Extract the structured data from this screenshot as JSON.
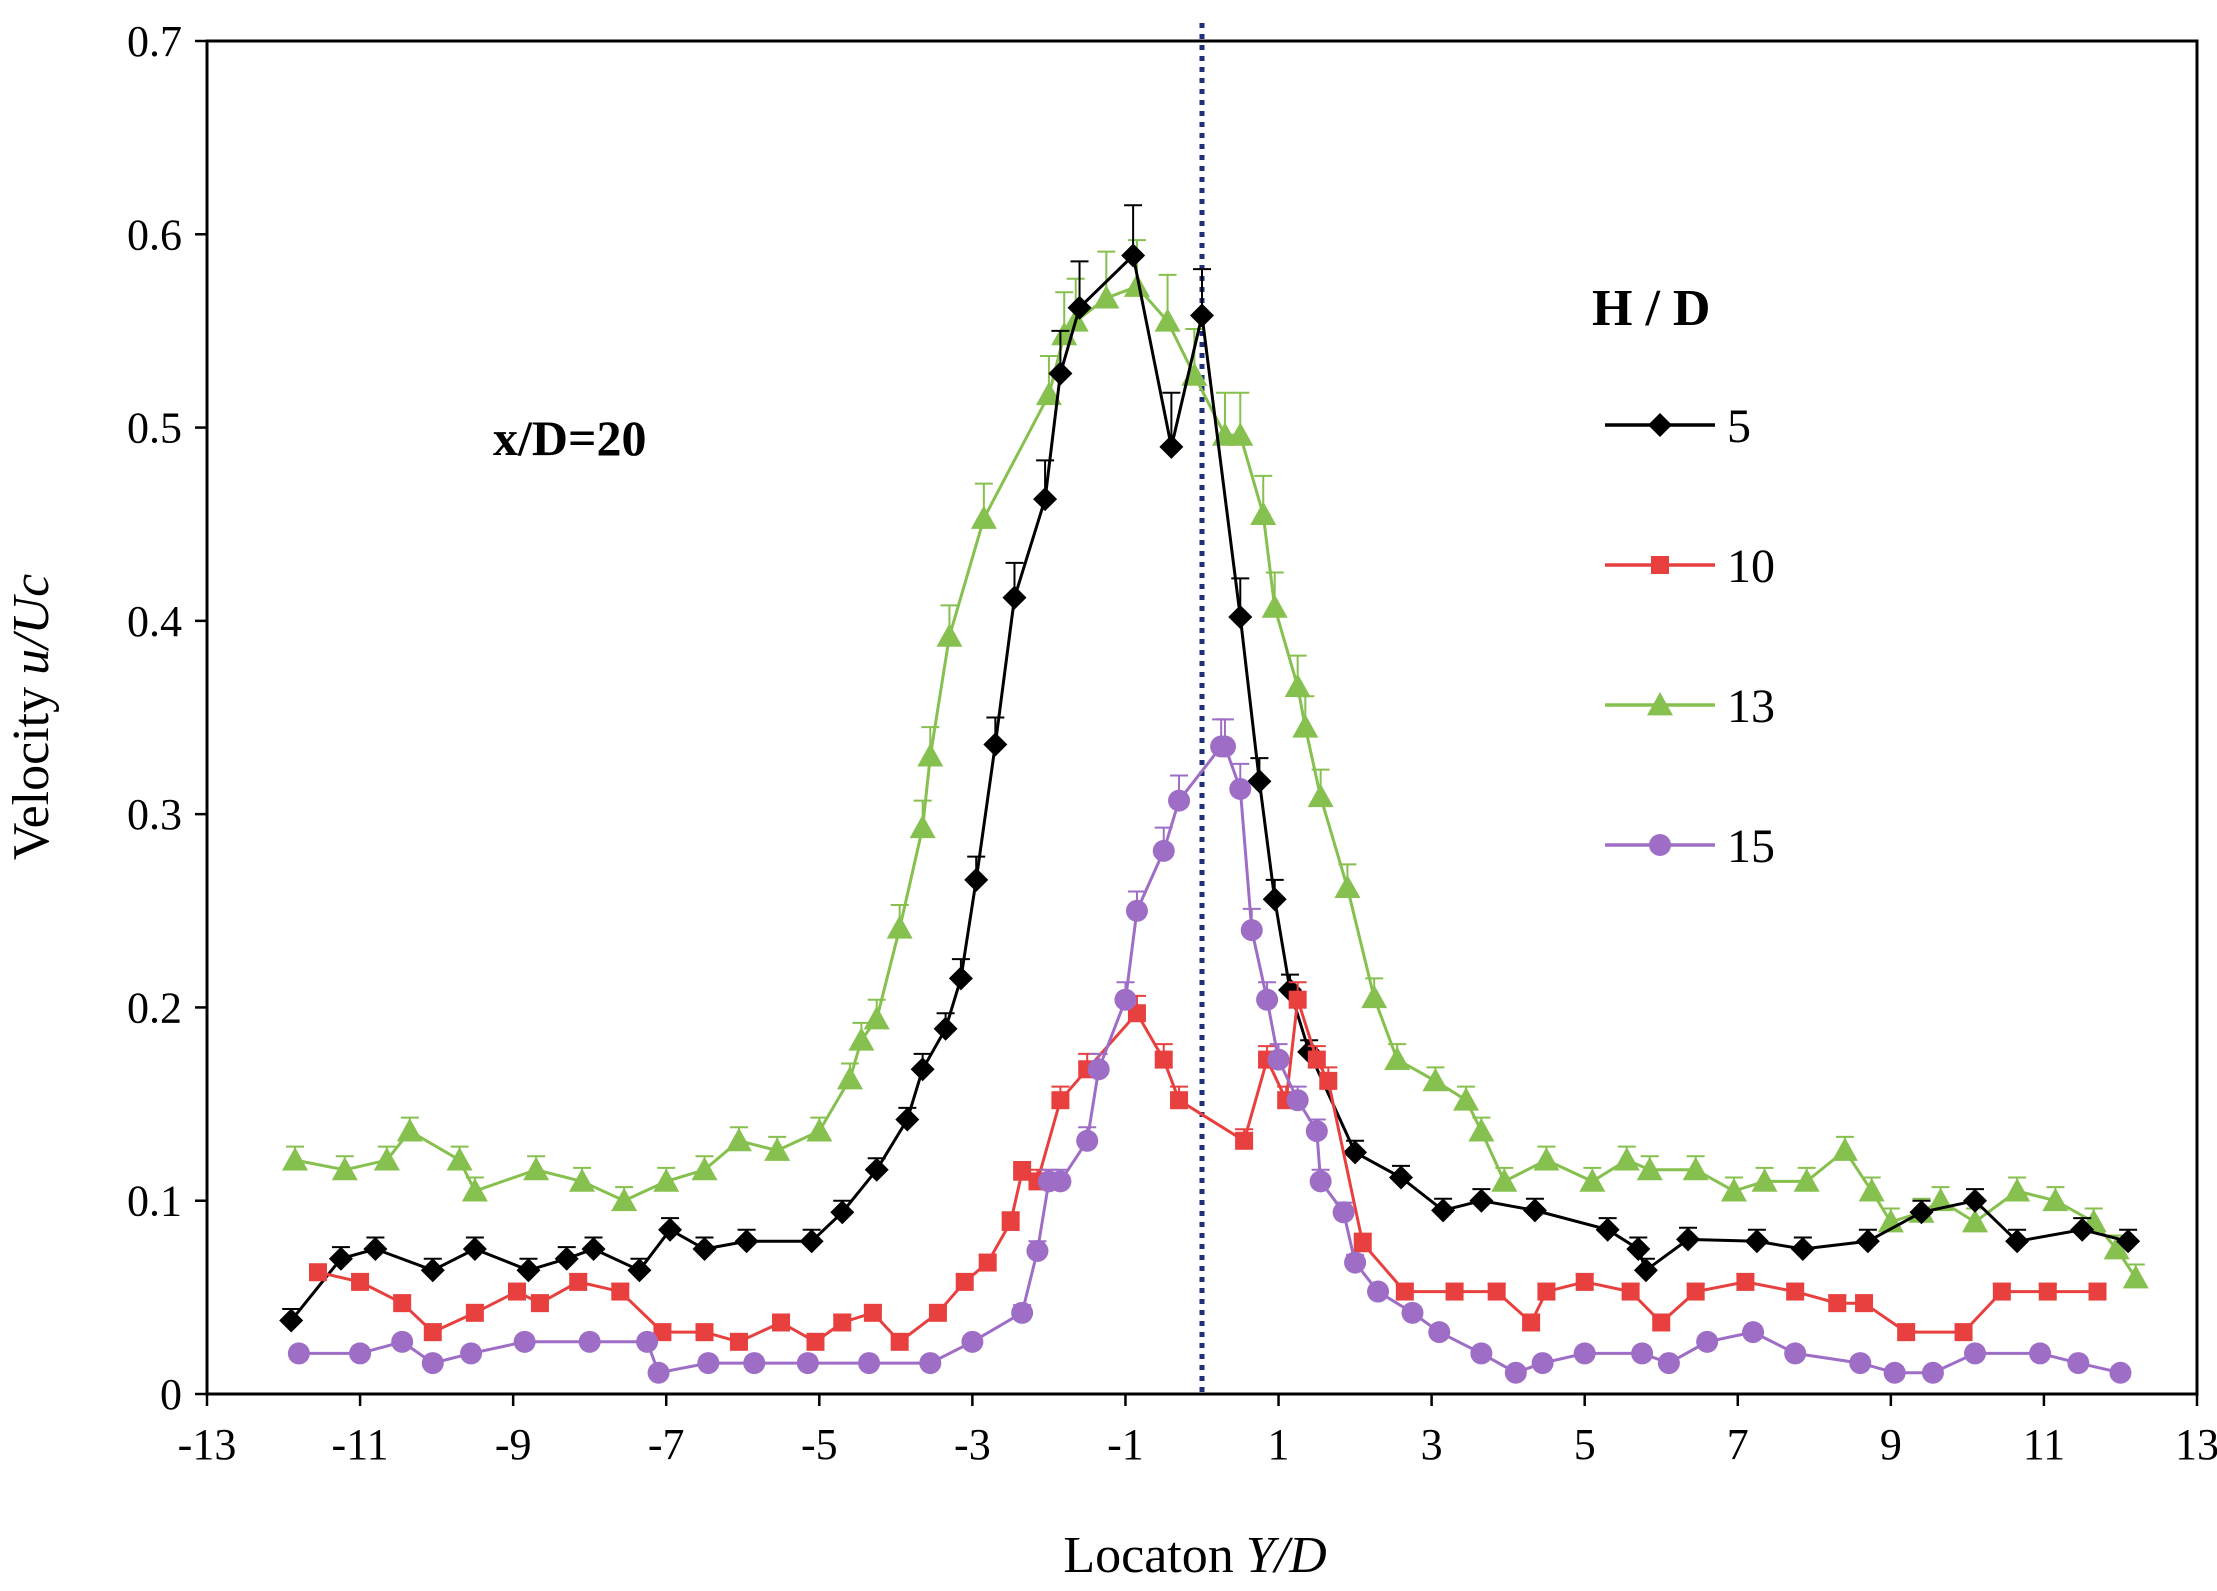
{
  "chart_data": {
    "type": "line",
    "title": "",
    "xlabel": "Locaton",
    "xlabel_italic": "Y/D",
    "ylabel": "Velocity",
    "ylabel_italic": "u/Uc",
    "xlim": [
      -13,
      13
    ],
    "ylim": [
      0,
      0.7
    ],
    "xticks": [
      "-13",
      "-11",
      "-9",
      "-7",
      "-5",
      "-3",
      "-1",
      "1",
      "3",
      "5",
      "7",
      "9",
      "11",
      "13"
    ],
    "yticks": [
      "0",
      "0.1",
      "0.2",
      "0.3",
      "0.4",
      "0.5",
      "0.6",
      "0.7"
    ],
    "grid": false,
    "annotation": "x/D=20",
    "reference_line_x": 0,
    "legend": {
      "title": "H / D",
      "placement": "right"
    },
    "series": [
      {
        "name": "5",
        "color": "#000000",
        "marker": "diamond",
        "x": [
          -11.9,
          -11.25,
          -10.8,
          -10.05,
          -9.5,
          -8.8,
          -8.3,
          -7.95,
          -7.35,
          -6.95,
          -6.5,
          -5.95,
          -5.1,
          -4.7,
          -4.25,
          -3.85,
          -3.65,
          -3.35,
          -3.15,
          -2.95,
          -2.7,
          -2.45,
          -2.05,
          -1.85,
          -1.6,
          -0.9,
          -0.4,
          0.0,
          0.5,
          0.75,
          0.95,
          1.15,
          1.4,
          2.0,
          2.6,
          3.15,
          3.65,
          4.35,
          5.3,
          5.7,
          5.8,
          6.35,
          7.25,
          7.85,
          8.7,
          9.4,
          10.1,
          10.65,
          11.5,
          12.1
        ],
        "values": [
          0.038,
          0.07,
          0.075,
          0.064,
          0.075,
          0.064,
          0.07,
          0.075,
          0.064,
          0.085,
          0.075,
          0.079,
          0.079,
          0.094,
          0.116,
          0.142,
          0.168,
          0.189,
          0.215,
          0.266,
          0.336,
          0.412,
          0.463,
          0.528,
          0.562,
          0.589,
          0.49,
          0.558,
          0.402,
          0.317,
          0.256,
          0.209,
          0.177,
          0.125,
          0.112,
          0.095,
          0.1,
          0.095,
          0.085,
          0.075,
          0.064,
          0.08,
          0.079,
          0.075,
          0.079,
          0.094,
          0.1,
          0.079,
          0.085,
          0.079
        ],
        "errors": [
          0.006,
          0.006,
          0.006,
          0.006,
          0.006,
          0.006,
          0.006,
          0.006,
          0.006,
          0.006,
          0.006,
          0.006,
          0.006,
          0.006,
          0.006,
          0.006,
          0.008,
          0.008,
          0.01,
          0.012,
          0.014,
          0.018,
          0.02,
          0.022,
          0.024,
          0.026,
          0.028,
          0.024,
          0.02,
          0.012,
          0.01,
          0.008,
          0.006,
          0.006,
          0.006,
          0.006,
          0.006,
          0.006,
          0.006,
          0.006,
          0.006,
          0.006,
          0.006,
          0.006,
          0.006,
          0.006,
          0.006,
          0.006,
          0.006,
          0.006
        ]
      },
      {
        "name": "10",
        "color": "#e8403f",
        "marker": "square",
        "x": [
          -11.55,
          -11.0,
          -10.45,
          -10.05,
          -9.5,
          -8.95,
          -8.65,
          -8.15,
          -7.6,
          -7.05,
          -6.5,
          -6.05,
          -5.5,
          -5.05,
          -4.7,
          -4.3,
          -3.95,
          -3.45,
          -3.1,
          -2.8,
          -2.5,
          -2.35,
          -2.15,
          -1.85,
          -1.5,
          -0.85,
          -0.5,
          -0.3,
          0.55,
          0.85,
          1.1,
          1.25,
          1.5,
          1.65,
          2.1,
          2.65,
          3.3,
          3.85,
          4.3,
          4.5,
          5.0,
          5.6,
          6.0,
          6.45,
          7.1,
          7.75,
          8.3,
          8.65,
          9.2,
          9.95,
          10.45,
          11.05,
          11.7
        ],
        "values": [
          0.063,
          0.058,
          0.047,
          0.032,
          0.042,
          0.053,
          0.047,
          0.058,
          0.053,
          0.032,
          0.032,
          0.027,
          0.037,
          0.027,
          0.037,
          0.042,
          0.027,
          0.042,
          0.058,
          0.068,
          0.089,
          0.115,
          0.11,
          0.152,
          0.168,
          0.197,
          0.173,
          0.152,
          0.131,
          0.173,
          0.152,
          0.204,
          0.173,
          0.162,
          0.078,
          0.053,
          0.053,
          0.053,
          0.037,
          0.053,
          0.058,
          0.053,
          0.037,
          0.053,
          0.058,
          0.053,
          0.047,
          0.047,
          0.032,
          0.032,
          0.053,
          0.053,
          0.053
        ],
        "errors": [
          0.004,
          0.004,
          0.004,
          0.004,
          0.004,
          0.004,
          0.004,
          0.004,
          0.004,
          0.004,
          0.004,
          0.004,
          0.004,
          0.004,
          0.004,
          0.004,
          0.004,
          0.004,
          0.004,
          0.004,
          0.005,
          0.005,
          0.006,
          0.007,
          0.008,
          0.009,
          0.008,
          0.007,
          0.006,
          0.007,
          0.007,
          0.009,
          0.007,
          0.007,
          0.005,
          0.004,
          0.004,
          0.004,
          0.004,
          0.004,
          0.004,
          0.004,
          0.004,
          0.004,
          0.004,
          0.004,
          0.004,
          0.004,
          0.004,
          0.004,
          0.004,
          0.004,
          0.004
        ]
      },
      {
        "name": "13",
        "color": "#86c04e",
        "marker": "triangle",
        "x": [
          -11.85,
          -11.2,
          -10.65,
          -10.35,
          -9.7,
          -9.5,
          -8.7,
          -8.1,
          -7.55,
          -7.0,
          -6.5,
          -6.05,
          -5.55,
          -5.0,
          -4.6,
          -4.45,
          -4.25,
          -3.95,
          -3.65,
          -3.55,
          -3.3,
          -2.85,
          -2.0,
          -1.8,
          -1.65,
          -1.25,
          -0.85,
          -0.45,
          -0.1,
          0.3,
          0.5,
          0.8,
          0.95,
          1.25,
          1.35,
          1.55,
          1.9,
          2.25,
          2.55,
          3.05,
          3.45,
          3.65,
          3.95,
          4.5,
          5.1,
          5.55,
          5.85,
          6.45,
          6.95,
          7.35,
          7.9,
          8.4,
          8.75,
          9.0,
          9.4,
          9.65,
          10.1,
          10.65,
          11.15,
          11.65,
          11.95,
          12.2
        ],
        "values": [
          0.121,
          0.116,
          0.121,
          0.136,
          0.121,
          0.105,
          0.116,
          0.11,
          0.1,
          0.11,
          0.116,
          0.131,
          0.126,
          0.136,
          0.163,
          0.183,
          0.194,
          0.241,
          0.293,
          0.33,
          0.392,
          0.453,
          0.517,
          0.548,
          0.555,
          0.567,
          0.573,
          0.555,
          0.527,
          0.496,
          0.496,
          0.455,
          0.407,
          0.366,
          0.345,
          0.309,
          0.262,
          0.205,
          0.173,
          0.162,
          0.152,
          0.136,
          0.11,
          0.121,
          0.11,
          0.121,
          0.116,
          0.116,
          0.105,
          0.11,
          0.11,
          0.126,
          0.105,
          0.089,
          0.094,
          0.1,
          0.089,
          0.105,
          0.1,
          0.089,
          0.075,
          0.06
        ],
        "errors": [
          0.007,
          0.007,
          0.007,
          0.007,
          0.007,
          0.007,
          0.007,
          0.007,
          0.007,
          0.007,
          0.007,
          0.007,
          0.007,
          0.007,
          0.008,
          0.009,
          0.01,
          0.012,
          0.014,
          0.015,
          0.016,
          0.018,
          0.02,
          0.022,
          0.022,
          0.024,
          0.024,
          0.024,
          0.024,
          0.022,
          0.022,
          0.02,
          0.018,
          0.016,
          0.016,
          0.014,
          0.012,
          0.01,
          0.008,
          0.007,
          0.007,
          0.007,
          0.007,
          0.007,
          0.007,
          0.007,
          0.007,
          0.007,
          0.007,
          0.007,
          0.007,
          0.007,
          0.007,
          0.007,
          0.007,
          0.007,
          0.007,
          0.007,
          0.007,
          0.007,
          0.007,
          0.007
        ]
      },
      {
        "name": "15",
        "color": "#9e6ec7",
        "marker": "circle",
        "x": [
          -11.8,
          -11.0,
          -10.45,
          -10.05,
          -9.55,
          -8.85,
          -8.0,
          -7.25,
          -7.1,
          -6.45,
          -5.85,
          -5.15,
          -4.35,
          -3.55,
          -3.0,
          -2.35,
          -2.15,
          -2.0,
          -1.85,
          -1.5,
          -1.35,
          -1.0,
          -0.85,
          -0.5,
          -0.3,
          0.25,
          0.3,
          0.5,
          0.65,
          0.85,
          1.0,
          1.25,
          1.5,
          1.55,
          1.85,
          2.0,
          2.3,
          2.75,
          3.1,
          3.65,
          4.1,
          4.45,
          5.0,
          5.75,
          6.1,
          6.6,
          7.2,
          7.75,
          8.6,
          9.05,
          9.55,
          10.1,
          10.95,
          11.45,
          12.0
        ],
        "values": [
          0.021,
          0.021,
          0.027,
          0.016,
          0.021,
          0.027,
          0.027,
          0.027,
          0.011,
          0.016,
          0.016,
          0.016,
          0.016,
          0.016,
          0.027,
          0.042,
          0.074,
          0.11,
          0.11,
          0.131,
          0.168,
          0.204,
          0.25,
          0.281,
          0.307,
          0.335,
          0.335,
          0.313,
          0.24,
          0.204,
          0.173,
          0.152,
          0.136,
          0.11,
          0.094,
          0.068,
          0.053,
          0.042,
          0.032,
          0.021,
          0.011,
          0.016,
          0.021,
          0.021,
          0.016,
          0.027,
          0.032,
          0.021,
          0.016,
          0.011,
          0.011,
          0.021,
          0.021,
          0.016,
          0.011
        ],
        "errors": [
          0.003,
          0.003,
          0.003,
          0.003,
          0.003,
          0.003,
          0.003,
          0.003,
          0.003,
          0.003,
          0.003,
          0.003,
          0.003,
          0.003,
          0.003,
          0.004,
          0.005,
          0.006,
          0.006,
          0.007,
          0.008,
          0.009,
          0.01,
          0.012,
          0.013,
          0.014,
          0.014,
          0.013,
          0.011,
          0.009,
          0.008,
          0.007,
          0.006,
          0.006,
          0.005,
          0.004,
          0.003,
          0.003,
          0.003,
          0.003,
          0.003,
          0.003,
          0.003,
          0.003,
          0.003,
          0.003,
          0.003,
          0.003,
          0.003,
          0.003,
          0.003,
          0.003,
          0.003,
          0.003,
          0.003
        ]
      }
    ]
  }
}
